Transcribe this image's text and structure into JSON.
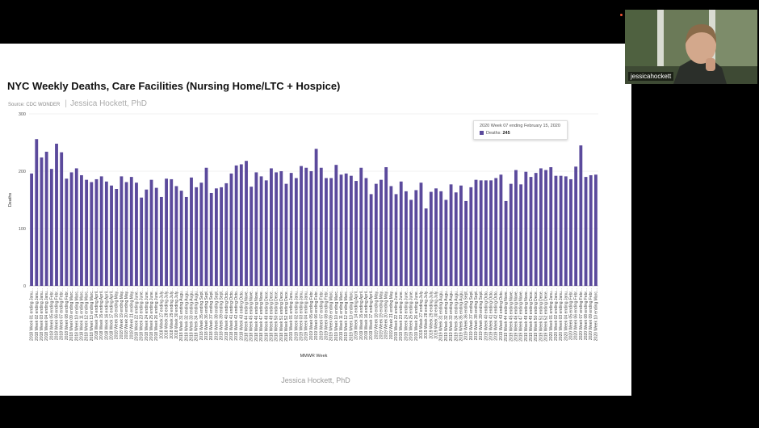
{
  "slide": {
    "title": "NYC Weekly Deaths, Care Facilities (Nursing Home/LTC + Hospice)",
    "source": "Source: CDC WONDER",
    "author_top": "Jessica Hockett, PhD",
    "footer": "Jessica Hockett, PhD"
  },
  "tooltip": {
    "title": "2020 Week 07 ending February 15, 2020",
    "label": "Deaths:",
    "value": "245"
  },
  "video": {
    "name": "jessicahockett"
  },
  "colors": {
    "bar": "#5b4a9c"
  },
  "chart_data": {
    "type": "bar",
    "xlabel": "MMWR Week",
    "ylabel": "Deaths",
    "ylim": [
      0,
      300
    ],
    "yticks": [
      0,
      100,
      200,
      300
    ],
    "grid": true,
    "categories": [
      "2018 Week 01 ending Janu...",
      "2018 Week 02 ending Janu...",
      "2018 Week 03 ending Janu...",
      "2018 Week 04 ending Janu...",
      "2018 Week 05 ending Febr...",
      "2018 Week 06 ending Febr...",
      "2018 Week 07 ending Febr...",
      "2018 Week 08 ending Febr...",
      "2018 Week 09 ending Marc...",
      "2018 Week 10 ending Marc...",
      "2018 Week 11 ending Marc...",
      "2018 Week 12 ending Marc...",
      "2018 Week 13 ending Marc...",
      "2018 Week 14 ending April...",
      "2018 Week 15 ending April...",
      "2018 Week 16 ending April...",
      "2018 Week 17 ending April...",
      "2018 Week 18 ending May...",
      "2018 Week 19 ending May...",
      "2018 Week 20 ending May...",
      "2018 Week 21 ending May...",
      "2018 Week 22 ending June...",
      "2018 Week 23 ending June...",
      "2018 Week 24 ending June...",
      "2018 Week 25 ending June...",
      "2018 Week 26 ending June...",
      "2018 Week 27 ending July...",
      "2018 Week 28 ending July...",
      "2018 Week 29 ending July...",
      "2018 Week 30 ending July...",
      "2018 Week 31 ending Augu...",
      "2018 Week 32 ending Augu...",
      "2018 Week 33 ending Augu...",
      "2018 Week 34 ending Augu...",
      "2018 Week 35 ending Sept...",
      "2018 Week 36 ending Sept...",
      "2018 Week 37 ending Sept...",
      "2018 Week 38 ending Sept...",
      "2018 Week 39 ending Sept...",
      "2018 Week 40 ending Octo...",
      "2018 Week 41 ending Octo...",
      "2018 Week 42 ending Octo...",
      "2018 Week 43 ending Octo...",
      "2018 Week 44 ending Nove...",
      "2018 Week 45 ending Nove...",
      "2018 Week 46 ending Nove...",
      "2018 Week 47 ending Nove...",
      "2018 Week 48 ending Dece...",
      "2018 Week 49 ending Dece...",
      "2018 Week 50 ending Dece...",
      "2018 Week 51 ending Dece...",
      "2018 Week 52 ending Dece...",
      "2019 Week 01 ending Janu...",
      "2019 Week 02 ending Janu...",
      "2019 Week 03 ending Janu...",
      "2019 Week 04 ending Janu...",
      "2019 Week 05 ending Febr...",
      "2019 Week 06 ending Febr...",
      "2019 Week 07 ending Febr...",
      "2019 Week 08 ending Febr...",
      "2019 Week 09 ending Marc...",
      "2019 Week 10 ending Marc...",
      "2019 Week 11 ending Marc...",
      "2019 Week 12 ending Marc...",
      "2019 Week 13 ending Marc...",
      "2019 Week 14 ending April...",
      "2019 Week 15 ending April...",
      "2019 Week 16 ending April...",
      "2019 Week 17 ending April...",
      "2019 Week 18 ending May...",
      "2019 Week 19 ending May...",
      "2019 Week 20 ending May...",
      "2019 Week 21 ending May...",
      "2019 Week 22 ending June...",
      "2019 Week 23 ending June...",
      "2019 Week 24 ending June...",
      "2019 Week 25 ending June...",
      "2019 Week 26 ending June...",
      "2019 Week 27 ending July...",
      "2019 Week 28 ending July...",
      "2019 Week 29 ending July...",
      "2019 Week 30 ending July...",
      "2019 Week 31 ending Augu...",
      "2019 Week 32 ending Augu...",
      "2019 Week 33 ending Augu...",
      "2019 Week 34 ending Augu...",
      "2019 Week 35 ending Augu...",
      "2019 Week 36 ending Sept...",
      "2019 Week 37 ending Sept...",
      "2019 Week 38 ending Sept...",
      "2019 Week 39 ending Sept...",
      "2019 Week 40 ending Octo...",
      "2019 Week 41 ending Octo...",
      "2019 Week 42 ending Octo...",
      "2019 Week 43 ending Octo...",
      "2019 Week 44 ending Nove...",
      "2019 Week 45 ending Nove...",
      "2019 Week 46 ending Nove...",
      "2019 Week 47 ending Nove...",
      "2019 Week 48 ending Nove...",
      "2019 Week 49 ending Dece...",
      "2019 Week 50 ending Dece...",
      "2019 Week 51 ending Dece...",
      "2019 Week 52 ending Dece...",
      "2020 Week 01 ending Janu...",
      "2020 Week 02 ending Janu...",
      "2020 Week 03 ending Janu...",
      "2020 Week 04 ending Janu...",
      "2020 Week 05 ending Febr...",
      "2020 Week 06 ending Febr...",
      "2020 Week 07 ending Febr...",
      "2020 Week 08 ending Febr...",
      "2020 Week 09 ending Febr...",
      "2020 Week 10 ending Marc..."
    ],
    "values": [
      196,
      256,
      224,
      234,
      204,
      248,
      233,
      187,
      198,
      205,
      193,
      185,
      181,
      186,
      191,
      182,
      175,
      169,
      191,
      181,
      190,
      180,
      154,
      168,
      185,
      171,
      155,
      187,
      186,
      174,
      166,
      155,
      189,
      172,
      180,
      206,
      162,
      170,
      172,
      179,
      196,
      210,
      212,
      218,
      173,
      198,
      191,
      184,
      205,
      198,
      200,
      178,
      197,
      188,
      209,
      206,
      200,
      239,
      206,
      188,
      188,
      211,
      194,
      196,
      192,
      183,
      206,
      188,
      160,
      178,
      185,
      207,
      174,
      160,
      182,
      165,
      150,
      167,
      180,
      135,
      164,
      170,
      165,
      150,
      177,
      163,
      175,
      148,
      172,
      185,
      184,
      184,
      184,
      188,
      194,
      148,
      178,
      202,
      177,
      199,
      190,
      197,
      205,
      202,
      207,
      192,
      192,
      191,
      186,
      208,
      245,
      190,
      193,
      194
    ]
  }
}
